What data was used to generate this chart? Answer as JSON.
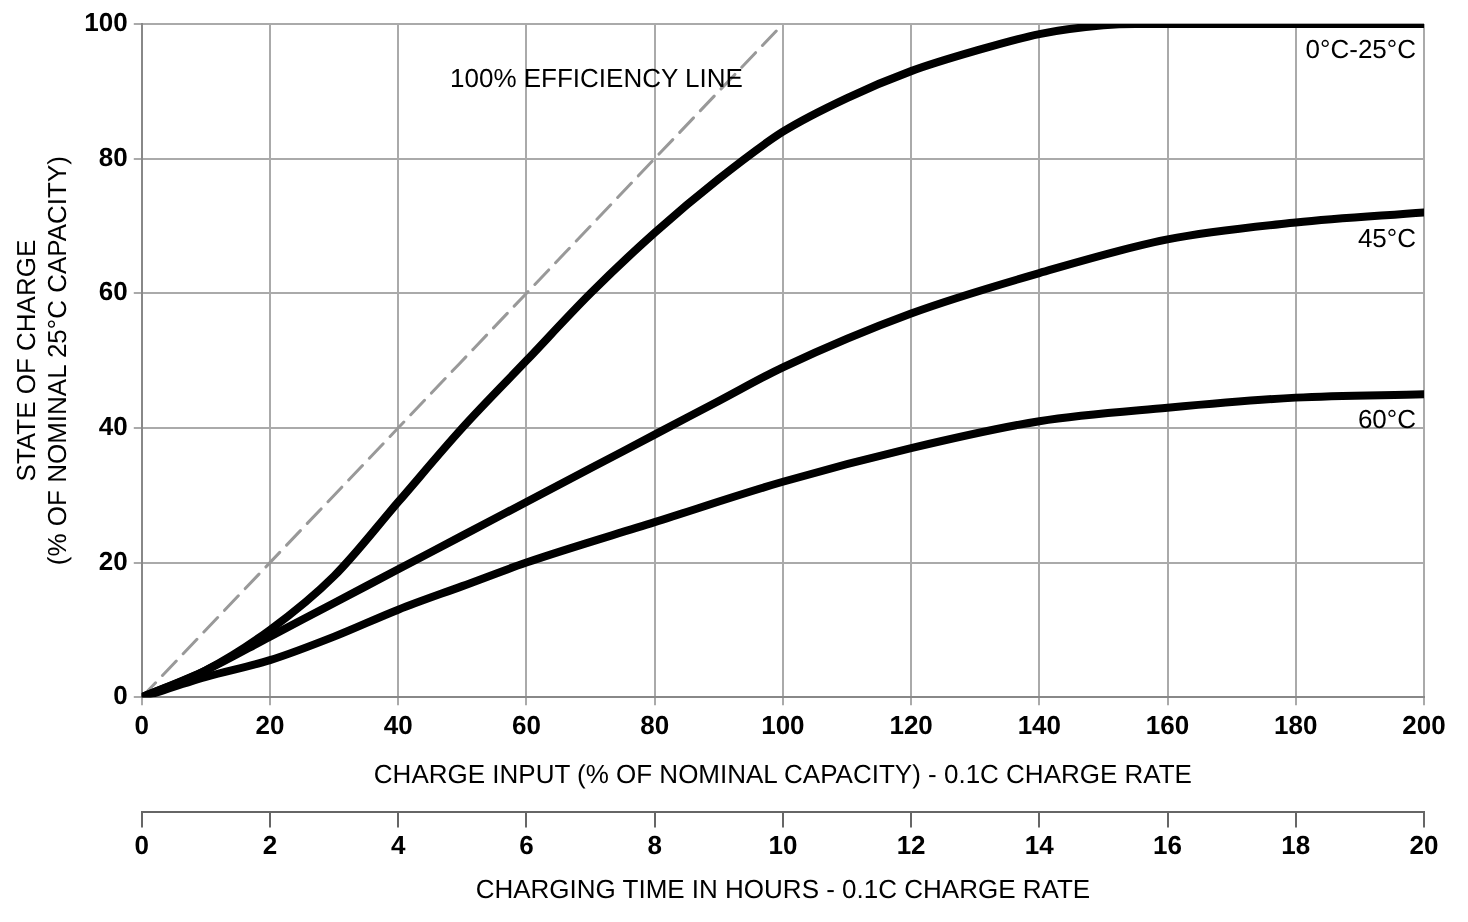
{
  "chart_data": {
    "type": "line",
    "xlabel": "CHARGE INPUT (% OF NOMINAL CAPACITY) - 0.1C CHARGE RATE",
    "ylabel": "STATE OF CHARGE\n(% OF NOMINAL 25°C CAPACITY)",
    "x2label": "CHARGING TIME IN HOURS - 0.1C CHARGE RATE",
    "xlim": [
      0,
      200
    ],
    "xticks": [
      0,
      20,
      40,
      60,
      80,
      100,
      120,
      140,
      160,
      180,
      200
    ],
    "ylim": [
      0,
      100
    ],
    "yticks": [
      0,
      20,
      40,
      60,
      80,
      100
    ],
    "x2lim": [
      0,
      20
    ],
    "x2ticks": [
      0,
      2,
      4,
      6,
      8,
      10,
      12,
      14,
      16,
      18,
      20
    ],
    "grid": true,
    "legend": false,
    "marker": "none",
    "series": [
      {
        "name": "0°C-25°C",
        "color": "#000000",
        "x": [
          0,
          10,
          20,
          30,
          40,
          50,
          60,
          70,
          80,
          90,
          100,
          110,
          120,
          130,
          140,
          150,
          155,
          200
        ],
        "values": [
          0,
          4,
          10,
          18,
          29,
          40,
          50,
          60,
          69,
          77,
          84,
          89,
          93,
          96,
          98.5,
          99.8,
          100,
          100
        ]
      },
      {
        "name": "45°C",
        "color": "#000000",
        "x": [
          0,
          10,
          20,
          30,
          40,
          50,
          60,
          70,
          80,
          90,
          100,
          120,
          140,
          160,
          180,
          200
        ],
        "values": [
          0,
          4,
          9,
          14,
          19,
          24,
          29,
          34,
          39,
          44,
          49,
          57,
          63,
          68,
          70.5,
          72
        ]
      },
      {
        "name": "60°C",
        "color": "#000000",
        "x": [
          0,
          10,
          20,
          30,
          40,
          50,
          60,
          80,
          100,
          120,
          140,
          160,
          180,
          200
        ],
        "values": [
          0,
          3,
          5.5,
          9,
          13,
          16.5,
          20,
          26,
          32,
          37,
          41,
          43,
          44.5,
          45
        ]
      },
      {
        "name": "100% EFFICIENCY LINE",
        "color": "#999999",
        "line_style": "dashed",
        "x": [
          0,
          100
        ],
        "values": [
          0,
          100
        ]
      }
    ]
  }
}
